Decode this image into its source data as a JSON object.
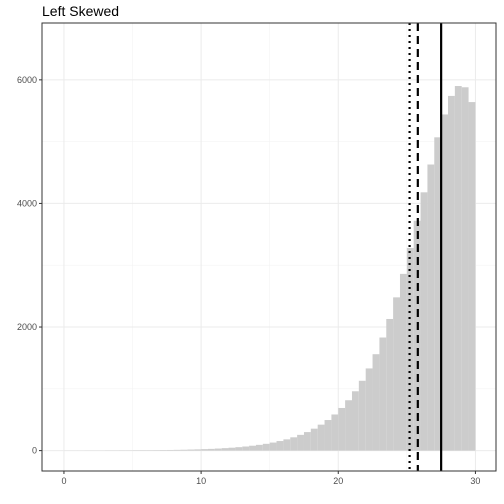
{
  "chart_data": {
    "type": "bar",
    "title": "Left Skewed",
    "xlabel": "",
    "ylabel": "",
    "xlim": [
      -1.6,
      31.5
    ],
    "ylim": [
      -330,
      6920
    ],
    "x_ticks": [
      0,
      10,
      20,
      30
    ],
    "y_ticks": [
      0,
      2000,
      4000,
      6000
    ],
    "x_tick_labels": [
      "0",
      "10",
      "20",
      "30"
    ],
    "y_tick_labels": [
      "0",
      "2000",
      "4000",
      "6000"
    ],
    "grid": true,
    "bin_width": 0.5,
    "bar_color": "#cccccc",
    "bins": [
      {
        "x0": 0.0,
        "count": 1
      },
      {
        "x0": 0.5,
        "count": 1
      },
      {
        "x0": 1.0,
        "count": 1
      },
      {
        "x0": 1.5,
        "count": 2
      },
      {
        "x0": 2.0,
        "count": 2
      },
      {
        "x0": 2.5,
        "count": 2
      },
      {
        "x0": 3.0,
        "count": 3
      },
      {
        "x0": 3.5,
        "count": 3
      },
      {
        "x0": 4.0,
        "count": 4
      },
      {
        "x0": 4.5,
        "count": 4
      },
      {
        "x0": 5.0,
        "count": 5
      },
      {
        "x0": 5.5,
        "count": 6
      },
      {
        "x0": 6.0,
        "count": 6
      },
      {
        "x0": 6.5,
        "count": 7
      },
      {
        "x0": 7.0,
        "count": 9
      },
      {
        "x0": 7.5,
        "count": 10
      },
      {
        "x0": 8.0,
        "count": 12
      },
      {
        "x0": 8.5,
        "count": 14
      },
      {
        "x0": 9.0,
        "count": 17
      },
      {
        "x0": 9.5,
        "count": 20
      },
      {
        "x0": 10.0,
        "count": 24
      },
      {
        "x0": 10.5,
        "count": 28
      },
      {
        "x0": 11.0,
        "count": 33
      },
      {
        "x0": 11.5,
        "count": 40
      },
      {
        "x0": 12.0,
        "count": 47
      },
      {
        "x0": 12.5,
        "count": 56
      },
      {
        "x0": 13.0,
        "count": 66
      },
      {
        "x0": 13.5,
        "count": 79
      },
      {
        "x0": 14.0,
        "count": 93
      },
      {
        "x0": 14.5,
        "count": 110
      },
      {
        "x0": 15.0,
        "count": 130
      },
      {
        "x0": 15.5,
        "count": 155
      },
      {
        "x0": 16.0,
        "count": 182
      },
      {
        "x0": 16.5,
        "count": 215
      },
      {
        "x0": 17.0,
        "count": 255
      },
      {
        "x0": 17.5,
        "count": 300
      },
      {
        "x0": 18.0,
        "count": 355
      },
      {
        "x0": 18.5,
        "count": 420
      },
      {
        "x0": 19.0,
        "count": 495
      },
      {
        "x0": 19.5,
        "count": 585
      },
      {
        "x0": 20.0,
        "count": 690
      },
      {
        "x0": 20.5,
        "count": 815
      },
      {
        "x0": 21.0,
        "count": 960
      },
      {
        "x0": 21.5,
        "count": 1130
      },
      {
        "x0": 22.0,
        "count": 1330
      },
      {
        "x0": 22.5,
        "count": 1560
      },
      {
        "x0": 23.0,
        "count": 1830
      },
      {
        "x0": 23.5,
        "count": 2130
      },
      {
        "x0": 24.0,
        "count": 2480
      },
      {
        "x0": 24.5,
        "count": 2860
      },
      {
        "x0": 25.0,
        "count": 3280
      },
      {
        "x0": 25.5,
        "count": 3720
      },
      {
        "x0": 26.0,
        "count": 4180
      },
      {
        "x0": 26.5,
        "count": 4630
      },
      {
        "x0": 27.0,
        "count": 5070
      },
      {
        "x0": 27.5,
        "count": 5440
      },
      {
        "x0": 28.0,
        "count": 5740
      },
      {
        "x0": 28.5,
        "count": 5900
      },
      {
        "x0": 29.0,
        "count": 5880
      },
      {
        "x0": 29.5,
        "count": 5640
      }
    ],
    "reference_lines": [
      {
        "x": 25.2,
        "style": "dotted",
        "color": "#000000"
      },
      {
        "x": 25.8,
        "style": "dashed",
        "color": "#000000"
      },
      {
        "x": 27.5,
        "style": "solid",
        "color": "#000000"
      }
    ]
  }
}
